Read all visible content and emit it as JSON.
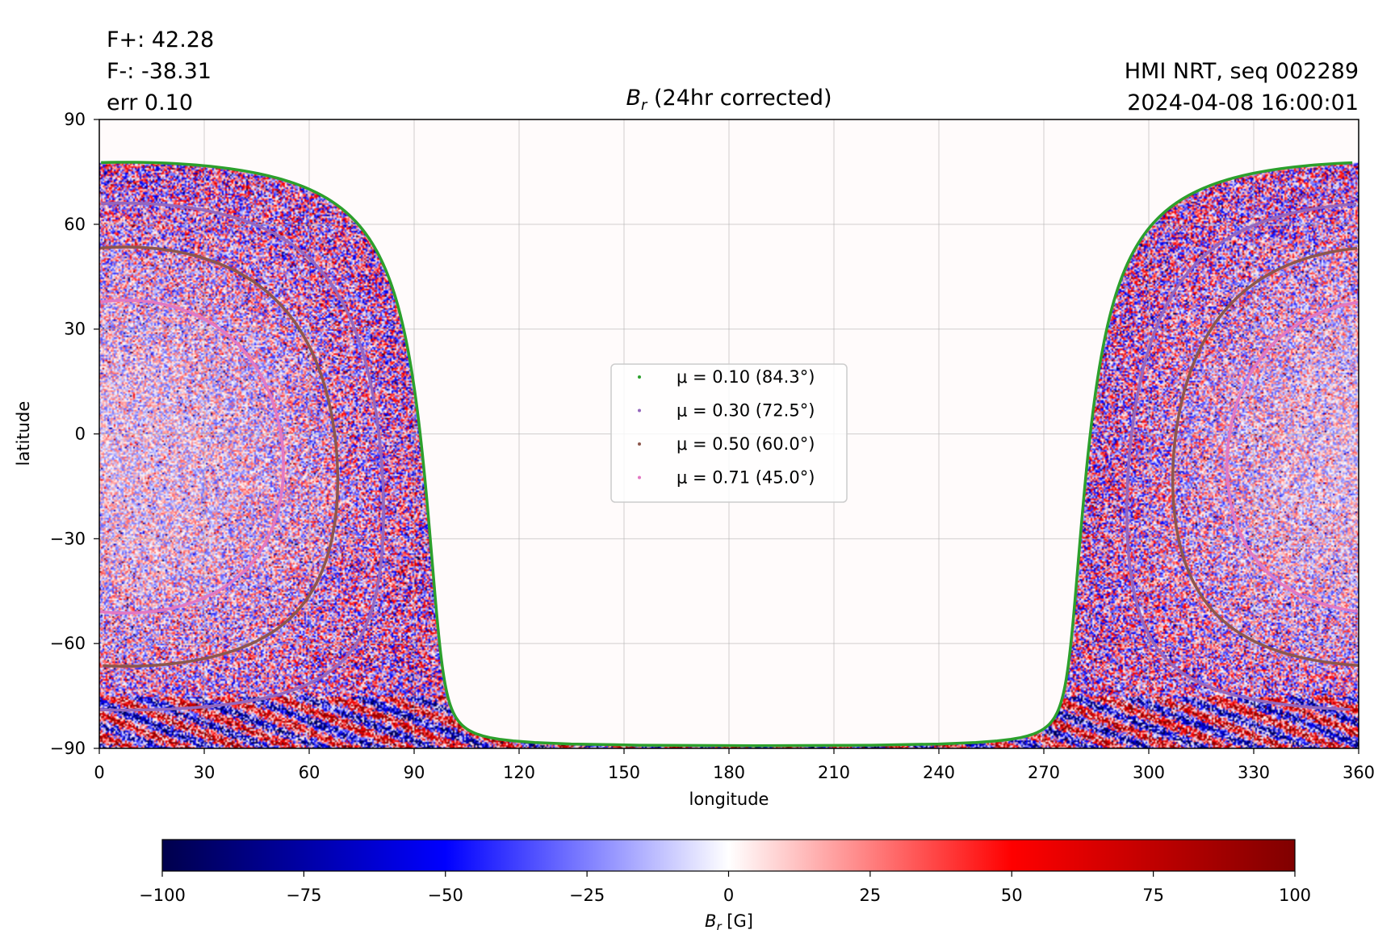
{
  "header": {
    "flux_pos": "F+: 42.28",
    "flux_neg": "F-: -38.31",
    "err": "err 0.10",
    "source": "HMI NRT, seq 002289",
    "timestamp": "2024-04-08 16:00:01"
  },
  "chart_data": {
    "type": "heatmap",
    "title_symbol": "B",
    "title_sub": "r",
    "title_rest": " (24hr corrected)",
    "xlabel": "longitude",
    "ylabel": "latitude",
    "xlim": [
      0,
      360
    ],
    "ylim": [
      -90,
      90
    ],
    "xticks": [
      "0",
      "30",
      "60",
      "90",
      "120",
      "150",
      "180",
      "210",
      "240",
      "270",
      "300",
      "330",
      "360"
    ],
    "yticks": [
      "90",
      "60",
      "30",
      "0",
      "−30",
      "−60",
      "−90"
    ],
    "grid": true,
    "disk_center": {
      "lon": 7.5,
      "lat": -6.5
    },
    "legend_position": "center",
    "contours": [
      {
        "mu": 0.1,
        "label": "μ = 0.10 (84.3°)",
        "color": "#2ca02c"
      },
      {
        "mu": 0.3,
        "label": "μ = 0.30 (72.5°)",
        "color": "#9467bd"
      },
      {
        "mu": 0.5,
        "label": "μ = 0.50 (60.0°)",
        "color": "#8c564b"
      },
      {
        "mu": 0.71,
        "label": "μ = 0.71 (45.0°)",
        "color": "#e377c2"
      }
    ],
    "colorbar": {
      "range": [
        -100,
        100
      ],
      "ticks": [
        "−100",
        "−75",
        "−50",
        "−25",
        "0",
        "25",
        "50",
        "75",
        "100"
      ],
      "label_symbol": "B",
      "label_sub": "r",
      "label_rest": " [G]",
      "colormap": [
        "#00004c",
        "#0000ff",
        "#ffffff",
        "#ff0000",
        "#800000"
      ]
    }
  }
}
